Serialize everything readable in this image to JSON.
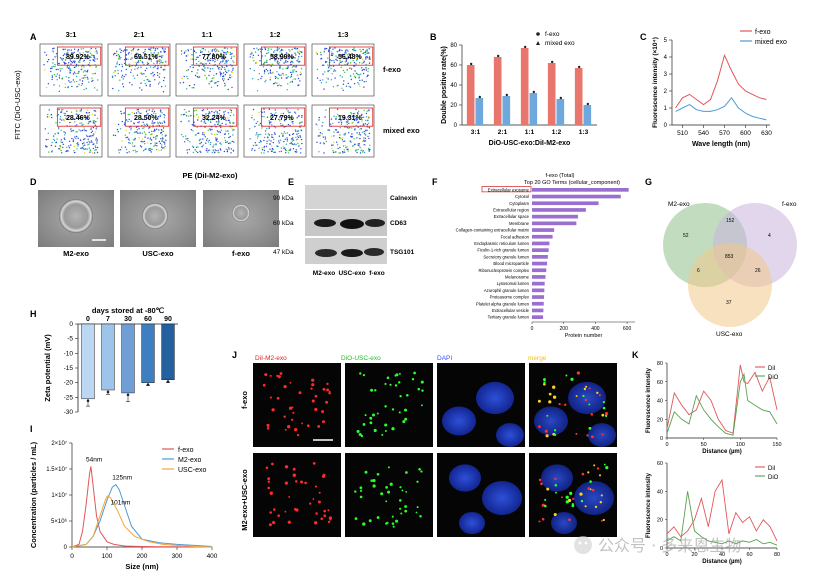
{
  "panels": {
    "A": {
      "letter": "A",
      "columns": [
        "3:1",
        "2:1",
        "1:1",
        "1:2",
        "1:3"
      ],
      "row_fexo": [
        "89.92%",
        "69.51%",
        "77.80%",
        "58.99%",
        "56.48%"
      ],
      "row_mixed": [
        "28.46%",
        "28.50%",
        "32.24%",
        "27.79%",
        "19.31%"
      ],
      "row_labels": [
        "f-exo",
        "mixed exo"
      ],
      "xlabel": "PE (DiI-M2-exo)",
      "ylabel": "FITC (DiO-USC-exo)"
    },
    "B": {
      "letter": "B"
    },
    "C": {
      "letter": "C"
    },
    "D": {
      "letter": "D",
      "labels": [
        "M2-exo",
        "USC-exo",
        "f-exo"
      ]
    },
    "E": {
      "letter": "E",
      "kda": [
        "90 kDa",
        "60 kDa",
        "47 kDa"
      ],
      "proteins": [
        "Calnexin",
        "CD63",
        "TSG101"
      ],
      "lanes": [
        "M2-exo",
        "USC-exo",
        "f-exo"
      ]
    },
    "F": {
      "letter": "F"
    },
    "G": {
      "letter": "G",
      "sets": [
        "M2-exo",
        "f-exo",
        "USC-exo"
      ],
      "counts": [
        "52",
        "4",
        "37",
        "152",
        "6",
        "26",
        "853"
      ]
    },
    "H": {
      "letter": "H"
    },
    "I": {
      "letter": "I"
    },
    "J": {
      "letter": "J",
      "columns": [
        "DiI-M2-exo",
        "DiO-USC-exo",
        "DAPI",
        "merge"
      ],
      "rows": [
        "f-exo",
        "M2-exo+USC-exo"
      ]
    },
    "K": {
      "letter": "K"
    }
  },
  "watermark": "公众号 · 多来恩生物",
  "chart_data": [
    {
      "panel": "B",
      "type": "bar",
      "categories": [
        "3:1",
        "2:1",
        "1:1",
        "1:2",
        "1:3"
      ],
      "series": [
        {
          "name": "f-exo",
          "values": [
            60,
            68,
            77,
            62,
            57
          ],
          "color": "#e8766d"
        },
        {
          "name": "mixed exo",
          "values": [
            27,
            29,
            32,
            26,
            20
          ],
          "color": "#6fa8dc"
        }
      ],
      "xlabel": "DiO-USC-exo:DiI-M2-exo",
      "ylabel": "Double positive rate(%)",
      "ylim": [
        0,
        80
      ],
      "yticks": [
        0,
        20,
        40,
        60,
        80
      ],
      "legend": "top-right"
    },
    {
      "panel": "C",
      "type": "line",
      "x": [
        500,
        510,
        520,
        530,
        540,
        550,
        560,
        570,
        580,
        590,
        600,
        610,
        620,
        630
      ],
      "series": [
        {
          "name": "f-exo",
          "values": [
            1.0,
            1.6,
            1.8,
            1.5,
            1.2,
            1.5,
            2.6,
            4.1,
            3.2,
            2.4,
            2.0,
            1.8,
            1.6,
            1.5
          ],
          "color": "#e15759"
        },
        {
          "name": "mixed exo",
          "values": [
            0.8,
            1.0,
            1.2,
            0.9,
            0.8,
            0.8,
            0.9,
            1.1,
            1.6,
            1.0,
            0.7,
            0.5,
            0.4,
            0.3
          ],
          "color": "#4e9bd8"
        }
      ],
      "xlabel": "Wave length (nm)",
      "ylabel": "Fluorescence intensity (×10⁴)",
      "xticks": [
        510,
        540,
        570,
        600,
        630
      ],
      "yticks": [
        0,
        1,
        2,
        3,
        4,
        5
      ],
      "xlim": [
        495,
        635
      ],
      "ylim": [
        0,
        5
      ],
      "legend": "top-right"
    },
    {
      "panel": "F",
      "type": "bar",
      "title": "f-exo (Total)",
      "subtitle": "Top 20 GO Terms (cellular_component)",
      "categories": [
        "Extracellular exosome",
        "Cytosol",
        "Cytoplasm",
        "Extracellular region",
        "Extracellular space",
        "Membrane",
        "Collagen-containing extracellular matrix",
        "Focal adhesion",
        "Endoplasmic reticulum lumen",
        "Ficolin-1-rich granule lumen",
        "Secretory granule lumen",
        "Blood microparticle",
        "Ribonucleoprotein complex",
        "Melanosome",
        "Lysosomal lumen",
        "Azurophil granule lumen",
        "Proteasome complex",
        "Platelet alpha granule lumen",
        "Extracellular vesicle",
        "Tertiary granule lumen"
      ],
      "values": [
        610,
        560,
        420,
        340,
        290,
        280,
        140,
        130,
        110,
        105,
        100,
        95,
        90,
        85,
        80,
        78,
        76,
        74,
        72,
        70
      ],
      "xlabel": "Protein number",
      "xticks": [
        0,
        200,
        400,
        600
      ],
      "xlim": [
        0,
        650
      ],
      "highlight": "Extracellular exosome"
    },
    {
      "panel": "H",
      "type": "bar",
      "title": "days stored at -80℃",
      "categories": [
        "0",
        "7",
        "30",
        "60",
        "90"
      ],
      "values": [
        -25.5,
        -22.5,
        -23.5,
        -20,
        -19
      ],
      "errors": [
        2.5,
        1.5,
        3,
        1,
        1
      ],
      "colors": [
        "#bcd7f2",
        "#9fc4ea",
        "#6f9fd4",
        "#3f7fbf",
        "#245f9e"
      ],
      "ylabel": "Zeta potential (mV)",
      "ylim": [
        -30,
        0
      ],
      "yticks": [
        0,
        -5,
        -10,
        -15,
        -20,
        -25,
        -30
      ]
    },
    {
      "panel": "I",
      "type": "line",
      "series": [
        {
          "name": "f-exo",
          "color": "#e15759",
          "x": [
            0,
            20,
            30,
            40,
            50,
            54,
            60,
            70,
            80,
            100,
            120,
            150,
            200,
            250,
            300,
            350,
            400
          ],
          "values": [
            0,
            0.5,
            3,
            8,
            14,
            15.5,
            12,
            6,
            3,
            1,
            0.5,
            0.2,
            0.1,
            0.05,
            0.05,
            0,
            0
          ]
        },
        {
          "name": "M2-exo",
          "color": "#4e9bd8",
          "x": [
            0,
            40,
            60,
            80,
            100,
            115,
            125,
            135,
            150,
            170,
            200,
            250,
            300,
            350,
            400
          ],
          "values": [
            0,
            0.5,
            2,
            5,
            9,
            11.5,
            12,
            11,
            8,
            4,
            1.5,
            0.8,
            0.5,
            0.3,
            0.1
          ]
        },
        {
          "name": "USC-exo",
          "color": "#f0a63a",
          "x": [
            0,
            40,
            60,
            80,
            95,
            101,
            110,
            130,
            150,
            180,
            220,
            260,
            300,
            350,
            400
          ],
          "values": [
            0,
            0.5,
            2,
            6,
            9,
            9.8,
            9.5,
            7,
            4,
            2,
            1,
            0.5,
            0.3,
            0.1,
            0
          ]
        }
      ],
      "annotations": [
        "54nm",
        "125nm",
        "101nm"
      ],
      "xlabel": "Size (nm)",
      "ylabel": "Concentration (particles / mL)",
      "xticks": [
        0,
        100,
        200,
        300,
        400
      ],
      "ytick_labels": [
        "0",
        "5×10⁶",
        "1×10⁷",
        "1.5×10⁷",
        "2×10⁷"
      ],
      "xlim": [
        0,
        400
      ],
      "ylim": [
        0,
        20
      ],
      "legend": "top-right"
    },
    {
      "panel": "K",
      "type": "line",
      "charts": [
        {
          "xticks": [
            0,
            50,
            100,
            150
          ],
          "yticks": [
            0,
            20,
            40,
            60,
            80
          ],
          "xlim": [
            0,
            150
          ],
          "ylim": [
            0,
            80
          ],
          "xlabel": "Distance (µm)",
          "ylabel": "Fluorescence intensity",
          "legend": "top-right",
          "series": [
            {
              "name": "DiI",
              "color": "#e15759",
              "x": [
                0,
                10,
                20,
                30,
                40,
                50,
                60,
                70,
                80,
                90,
                100,
                105,
                110,
                120,
                130,
                140,
                150
              ],
              "values": [
                10,
                48,
                35,
                25,
                30,
                50,
                40,
                20,
                8,
                5,
                78,
                60,
                58,
                70,
                50,
                65,
                30
              ]
            },
            {
              "name": "DiO",
              "color": "#59a14f",
              "x": [
                0,
                10,
                20,
                30,
                40,
                50,
                60,
                70,
                80,
                90,
                100,
                105,
                110,
                120,
                130,
                140,
                150
              ],
              "values": [
                5,
                28,
                20,
                15,
                45,
                30,
                20,
                12,
                5,
                3,
                60,
                68,
                40,
                35,
                30,
                28,
                15
              ]
            }
          ]
        },
        {
          "xticks": [
            0,
            20,
            40,
            60,
            80
          ],
          "yticks": [
            0,
            20,
            40,
            60
          ],
          "xlim": [
            0,
            80
          ],
          "ylim": [
            0,
            60
          ],
          "xlabel": "Distance (µm)",
          "ylabel": "Fluorescence intensity",
          "legend": "top-right",
          "series": [
            {
              "name": "DiI",
              "color": "#e15759",
              "x": [
                0,
                5,
                10,
                15,
                20,
                25,
                30,
                35,
                40,
                45,
                50,
                55,
                60,
                65,
                70,
                75,
                80
              ],
              "values": [
                10,
                15,
                8,
                12,
                20,
                35,
                15,
                40,
                48,
                10,
                25,
                18,
                22,
                12,
                20,
                15,
                5
              ]
            },
            {
              "name": "DiO",
              "color": "#59a14f",
              "x": [
                0,
                5,
                10,
                15,
                20,
                25,
                30,
                35,
                40,
                45,
                50,
                55,
                60,
                65,
                70,
                75,
                80
              ],
              "values": [
                5,
                8,
                5,
                40,
                12,
                8,
                5,
                4,
                3,
                5,
                3,
                5,
                4,
                6,
                3,
                4,
                2
              ]
            }
          ]
        }
      ]
    }
  ]
}
